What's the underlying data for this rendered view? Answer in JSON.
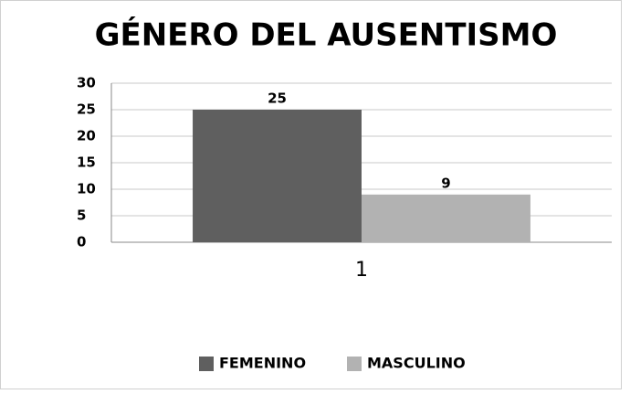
{
  "chart_data": {
    "type": "bar",
    "title": "GÉNERO DEL AUSENTISMO",
    "categories": [
      "1"
    ],
    "series": [
      {
        "name": "FEMENINO",
        "color": "#5f5f5f",
        "values": [
          25
        ]
      },
      {
        "name": "MASCULINO",
        "color": "#b2b2b2",
        "values": [
          9
        ]
      }
    ],
    "ylim": [
      0,
      30
    ],
    "yticks": [
      0,
      5,
      10,
      15,
      20,
      25,
      30
    ],
    "grid": true,
    "legend": "bottom"
  }
}
